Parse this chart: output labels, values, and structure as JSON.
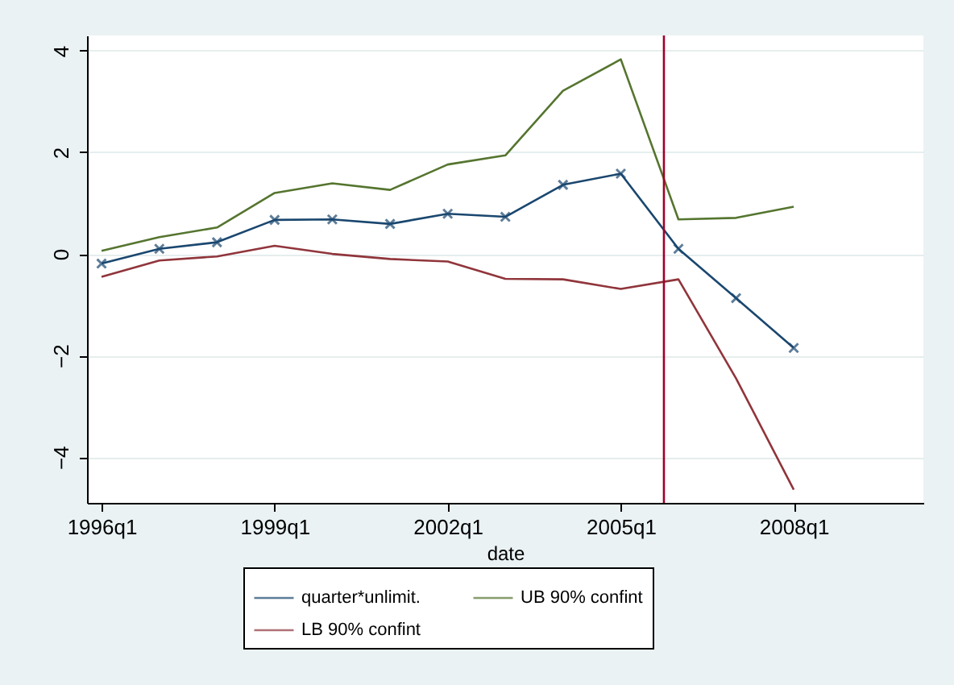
{
  "chart_data": {
    "type": "line",
    "xlabel": "date",
    "x": [
      "1996-01",
      "1997-01",
      "1998-01",
      "1999-01",
      "2000-01",
      "2001-01",
      "2002-01",
      "2003-01",
      "2004-01",
      "2005-01",
      "2006-01",
      "2007-01",
      "2008-01"
    ],
    "series": [
      {
        "name": "quarter*unlimit.",
        "color": "#1a476f",
        "marker": "cross",
        "values": [
          -0.19,
          0.1,
          0.23,
          0.67,
          0.68,
          0.59,
          0.79,
          0.73,
          1.36,
          1.58,
          0.1,
          -0.87,
          -1.85
        ]
      },
      {
        "name": "LB 90% confint",
        "color": "#90353b",
        "values": [
          -0.45,
          -0.13,
          -0.05,
          0.16,
          0,
          -0.1,
          -0.15,
          -0.49,
          -0.5,
          -0.69,
          -0.5,
          -2.45,
          -4.64
        ]
      },
      {
        "name": "UB 90% confint",
        "color": "#55752f",
        "values": [
          0.06,
          0.33,
          0.52,
          1.2,
          1.39,
          1.26,
          1.76,
          1.94,
          3.21,
          3.83,
          0.68,
          0.71,
          0.93
        ]
      }
    ],
    "xlim": [
      "1995-10",
      "2010-04"
    ],
    "xticks": [
      {
        "value": "1996-01",
        "label": "1996q1"
      },
      {
        "value": "1999-01",
        "label": "1999q1"
      },
      {
        "value": "2002-01",
        "label": "2002q1"
      },
      {
        "value": "2005-01",
        "label": "2005q1"
      },
      {
        "value": "2008-01",
        "label": "2008q1"
      }
    ],
    "ylim": [
      -4.9,
      4.3
    ],
    "yticks": [
      -4,
      -2,
      0,
      2,
      4
    ],
    "ref_lines": [
      {
        "axis": "x",
        "value": "2005-10",
        "label": null,
        "color": "#a0002a"
      }
    ],
    "grid": "y",
    "legend": "bottom"
  }
}
